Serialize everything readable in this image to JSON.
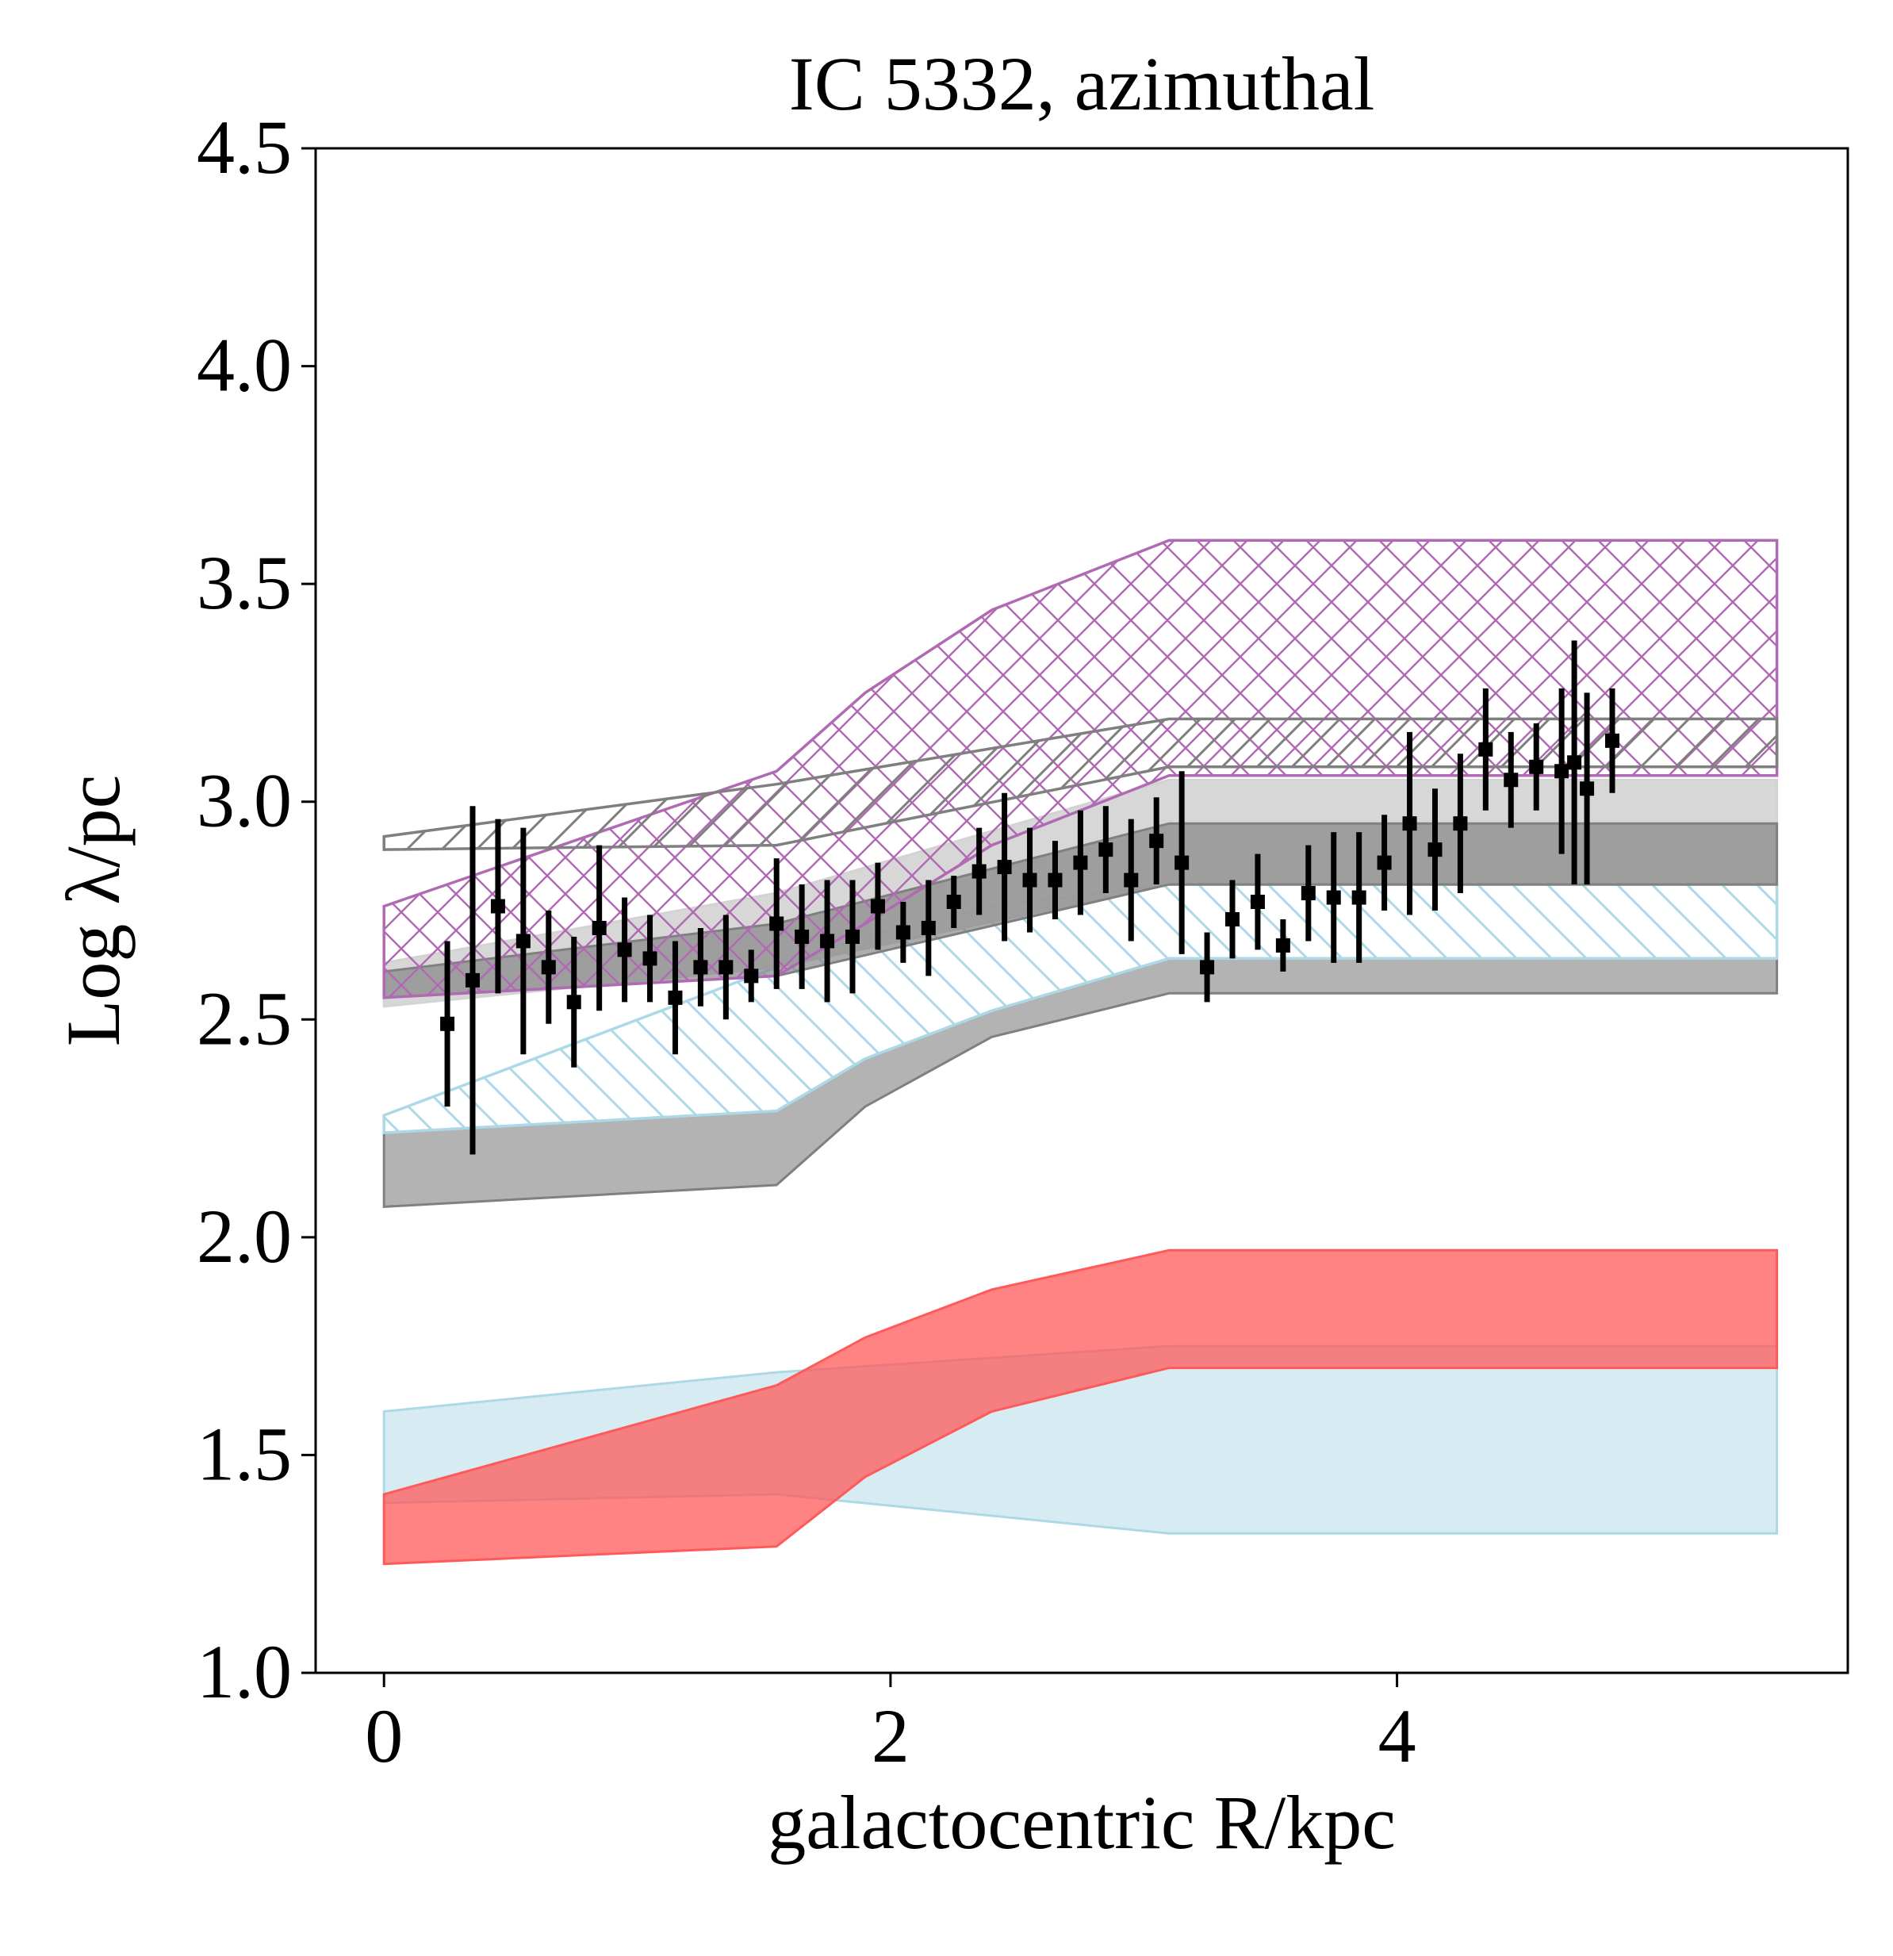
{
  "chart_data": {
    "type": "line",
    "title": "IC 5332, azimuthal",
    "xlabel": "galactocentric R/kpc",
    "ylabel": "Log λ/pc",
    "xlim": [
      -0.27,
      5.78
    ],
    "ylim": [
      1.0,
      4.5
    ],
    "xticks": [
      0,
      2,
      4
    ],
    "xtick_labels": [
      "0",
      "2",
      "4"
    ],
    "yticks": [
      1.0,
      1.5,
      2.0,
      2.5,
      3.0,
      3.5,
      4.0,
      4.5
    ],
    "ytick_labels": [
      "1.0",
      "1.5",
      "2.0",
      "2.5",
      "3.0",
      "3.5",
      "4.0",
      "4.5"
    ],
    "grid": false,
    "colors": {
      "purple": "#b06ab3",
      "gray_hatch": "#7f7f7f",
      "light_gray": "#d3d3d3",
      "dark_gray": "#808080",
      "mid_gray": "#b0b0b0",
      "light_blue": "#add8e6",
      "red": "#ff5a5a",
      "points": "#000000"
    },
    "bands": [
      {
        "style": "filled",
        "color": "#add8e6",
        "opacity": 0.5,
        "x": [
          0,
          1.55,
          3.1,
          5.5
        ],
        "lower": [
          1.39,
          1.41,
          1.32,
          1.32
        ],
        "upper": [
          1.6,
          1.69,
          1.75,
          1.75
        ]
      },
      {
        "style": "filled",
        "color": "#ff5a5a",
        "opacity": 0.75,
        "x": [
          0,
          1.55,
          1.9,
          2.4,
          3.1,
          5.5
        ],
        "lower": [
          1.25,
          1.29,
          1.45,
          1.6,
          1.7,
          1.7
        ],
        "upper": [
          1.41,
          1.66,
          1.77,
          1.88,
          1.97,
          1.97
        ]
      },
      {
        "style": "filled",
        "color": "#808080",
        "opacity": 0.6,
        "x": [
          0,
          1.55,
          1.9,
          2.4,
          3.1,
          5.5
        ],
        "lower": [
          2.07,
          2.12,
          2.3,
          2.46,
          2.56,
          2.56
        ],
        "upper": [
          2.24,
          2.29,
          2.41,
          2.52,
          2.64,
          2.64
        ]
      },
      {
        "style": "hatch",
        "hatch": "backslash",
        "color": "#add8e6",
        "x": [
          0,
          1.55,
          1.9,
          2.4,
          3.1,
          5.5
        ],
        "lower": [
          2.24,
          2.29,
          2.41,
          2.52,
          2.64,
          2.64
        ],
        "upper": [
          2.28,
          2.62,
          2.69,
          2.76,
          2.81,
          2.81
        ]
      },
      {
        "style": "filled",
        "color": "#d3d3d3",
        "opacity": 0.9,
        "x": [
          0,
          1.55,
          3.1,
          5.5
        ],
        "lower": [
          2.53,
          2.62,
          2.81,
          2.81
        ],
        "upper": [
          2.63,
          2.79,
          3.05,
          3.05
        ]
      },
      {
        "style": "filled",
        "color": "#808080",
        "opacity": 0.65,
        "x": [
          0,
          1.55,
          3.1,
          5.5
        ],
        "lower": [
          2.55,
          2.6,
          2.81,
          2.81
        ],
        "upper": [
          2.61,
          2.72,
          2.95,
          2.95
        ]
      },
      {
        "style": "hatch",
        "hatch": "cross",
        "color": "#b06ab3",
        "x": [
          0,
          1.55,
          1.9,
          2.4,
          3.1,
          5.5
        ],
        "lower": [
          2.55,
          2.6,
          2.72,
          2.9,
          3.06,
          3.06
        ],
        "upper": [
          2.76,
          3.07,
          3.25,
          3.44,
          3.6,
          3.6
        ]
      },
      {
        "style": "hatch",
        "hatch": "slash",
        "color": "#7f7f7f",
        "x": [
          0,
          1.55,
          3.1,
          5.5
        ],
        "lower": [
          2.89,
          2.9,
          3.08,
          3.08
        ],
        "upper": [
          2.92,
          3.04,
          3.19,
          3.19
        ]
      }
    ],
    "points": {
      "x": [
        0.25,
        0.35,
        0.45,
        0.55,
        0.65,
        0.75,
        0.85,
        0.95,
        1.05,
        1.15,
        1.25,
        1.35,
        1.45,
        1.55,
        1.65,
        1.75,
        1.85,
        1.95,
        2.05,
        2.15,
        2.25,
        2.35,
        2.45,
        2.55,
        2.65,
        2.75,
        2.85,
        2.95,
        3.05,
        3.15,
        3.25,
        3.35,
        3.45,
        3.55,
        3.65,
        3.75,
        3.85,
        3.95,
        4.05,
        4.15,
        4.25,
        4.35,
        4.45,
        4.55,
        4.65,
        4.7,
        4.75,
        4.85
      ],
      "y": [
        2.49,
        2.59,
        2.76,
        2.68,
        2.62,
        2.54,
        2.71,
        2.66,
        2.64,
        2.55,
        2.62,
        2.62,
        2.6,
        2.72,
        2.69,
        2.68,
        2.69,
        2.76,
        2.7,
        2.71,
        2.77,
        2.84,
        2.85,
        2.82,
        2.82,
        2.86,
        2.89,
        2.82,
        2.91,
        2.86,
        2.62,
        2.73,
        2.77,
        2.67,
        2.79,
        2.78,
        2.78,
        2.86,
        2.95,
        2.89,
        2.95,
        3.12,
        3.05,
        3.08,
        3.07,
        3.09,
        3.03,
        3.14
      ],
      "yerr": [
        0.19,
        0.4,
        0.2,
        0.26,
        0.13,
        0.15,
        0.19,
        0.12,
        0.1,
        0.13,
        0.09,
        0.12,
        0.06,
        0.15,
        0.12,
        0.14,
        0.13,
        0.1,
        0.07,
        0.11,
        0.06,
        0.1,
        0.17,
        0.12,
        0.09,
        0.12,
        0.1,
        0.14,
        0.1,
        0.21,
        0.08,
        0.09,
        0.11,
        0.06,
        0.11,
        0.15,
        0.15,
        0.11,
        0.21,
        0.14,
        0.16,
        0.14,
        0.11,
        0.1,
        0.19,
        0.28,
        0.22,
        0.12
      ]
    }
  }
}
